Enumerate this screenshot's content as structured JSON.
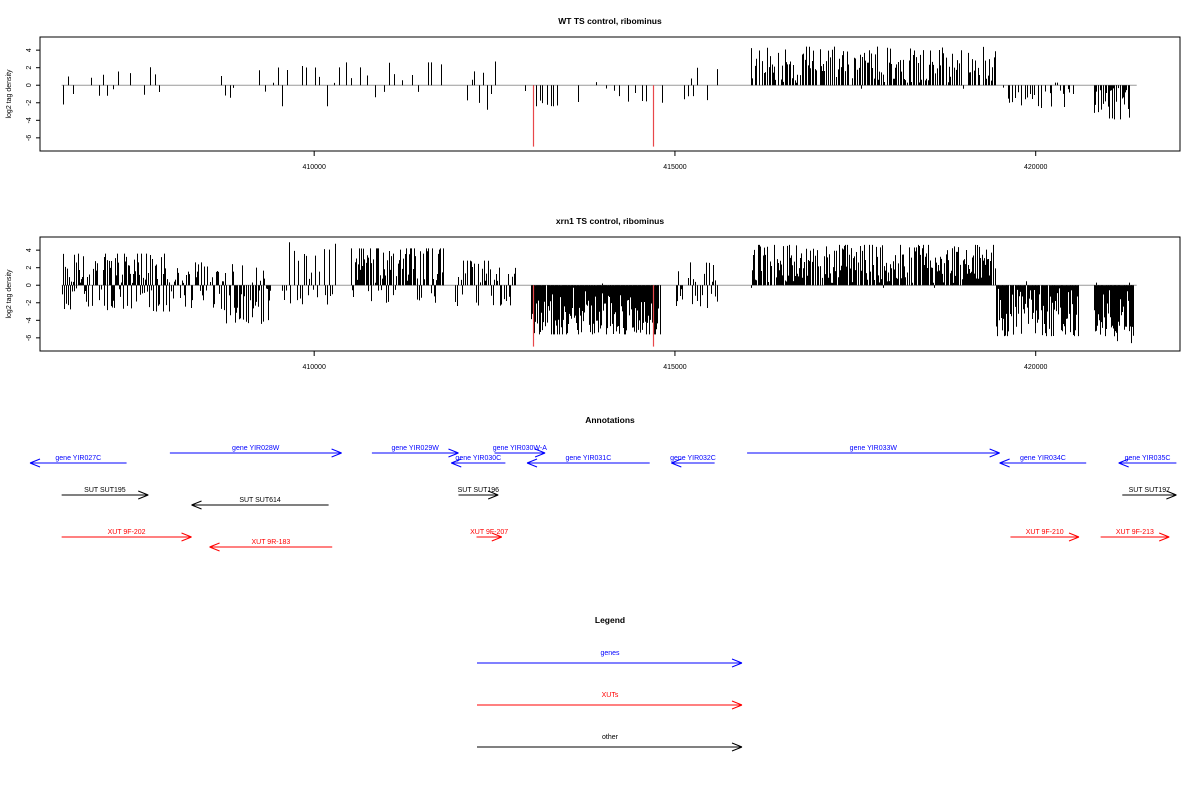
{
  "chart_data": [
    {
      "type": "bar",
      "title": "WT TS control, ribominus",
      "ylabel": "log2 tag density",
      "xlabel": "",
      "xlim": [
        406200,
        422000
      ],
      "ylim": [
        -7.5,
        5.5
      ],
      "yticks": [
        -6,
        -4,
        -2,
        0,
        2,
        4
      ],
      "xticks": [
        410000,
        415000,
        420000
      ],
      "xtick_labels": [
        "410000",
        "415000",
        "420000"
      ],
      "grid": false,
      "highlight_color": "#e8474a",
      "highlight_values": [
        {
          "x": 413030,
          "y": -7.0
        },
        {
          "x": 414700,
          "y": -7.0
        }
      ],
      "regions": [
        {
          "from": 406500,
          "to": 406680,
          "n": 3,
          "min": -2.2,
          "max": 1.0,
          "bias": 0.2,
          "p": 0.9
        },
        {
          "from": 406900,
          "to": 407900,
          "n": 14,
          "min": -1.2,
          "max": 2.6,
          "bias": 0.75,
          "p": 0.8
        },
        {
          "from": 408700,
          "to": 408900,
          "n": 4,
          "min": -2.2,
          "max": 1.2,
          "bias": 0.2,
          "p": 0.85
        },
        {
          "from": 409200,
          "to": 410200,
          "n": 12,
          "min": -2.4,
          "max": 2.2,
          "bias": 0.7,
          "p": 0.8
        },
        {
          "from": 410200,
          "to": 411800,
          "n": 16,
          "min": -1.6,
          "max": 2.6,
          "bias": 0.75,
          "p": 0.85
        },
        {
          "from": 412100,
          "to": 412600,
          "n": 9,
          "min": -2.8,
          "max": 2.7,
          "bias": 0.45,
          "p": 0.85
        },
        {
          "from": 412900,
          "to": 413400,
          "n": 10,
          "min": -2.4,
          "max": 0.5,
          "bias": 0.1,
          "p": 0.8
        },
        {
          "from": 413500,
          "to": 414900,
          "n": 14,
          "min": -2.0,
          "max": 0.4,
          "bias": 0.1,
          "p": 0.75
        },
        {
          "from": 415100,
          "to": 415600,
          "n": 10,
          "min": -2.0,
          "max": 2.0,
          "bias": 0.3,
          "p": 0.8
        },
        {
          "from": 416050,
          "to": 419450,
          "n": 170,
          "min": -0.4,
          "max": 4.4,
          "bias": 0.98,
          "p": 0.95
        },
        {
          "from": 419550,
          "to": 420600,
          "n": 30,
          "min": -2.6,
          "max": 0.3,
          "bias": 0.05,
          "p": 0.85
        },
        {
          "from": 420800,
          "to": 421300,
          "n": 30,
          "min": -3.9,
          "max": 0.2,
          "bias": 0.03,
          "p": 0.95
        }
      ]
    },
    {
      "type": "bar",
      "title": "xrn1 TS control, ribominus",
      "ylabel": "log2 tag density",
      "xlabel": "",
      "xlim": [
        406200,
        422000
      ],
      "ylim": [
        -7.5,
        5.5
      ],
      "yticks": [
        -6,
        -4,
        -2,
        0,
        2,
        4
      ],
      "xticks": [
        410000,
        415000,
        420000
      ],
      "xtick_labels": [
        "410000",
        "415000",
        "420000"
      ],
      "grid": false,
      "highlight_color": "#e8474a",
      "highlight_values": [
        {
          "x": 413030,
          "y": -7.0
        },
        {
          "x": 414700,
          "y": -7.0
        }
      ],
      "regions": [
        {
          "from": 406500,
          "to": 408000,
          "n": 110,
          "min": -3.0,
          "max": 3.6,
          "bias": 0.6,
          "p": 0.95
        },
        {
          "from": 408000,
          "to": 408700,
          "n": 40,
          "min": -2.6,
          "max": 2.6,
          "bias": 0.55,
          "p": 0.9
        },
        {
          "from": 408700,
          "to": 409400,
          "n": 45,
          "min": -4.4,
          "max": 2.4,
          "bias": 0.35,
          "p": 0.9
        },
        {
          "from": 409500,
          "to": 410300,
          "n": 30,
          "min": -2.2,
          "max": 5.2,
          "bias": 0.6,
          "p": 0.85
        },
        {
          "from": 410500,
          "to": 411800,
          "n": 90,
          "min": -2.0,
          "max": 4.2,
          "bias": 0.8,
          "p": 0.95
        },
        {
          "from": 411950,
          "to": 412800,
          "n": 40,
          "min": -2.4,
          "max": 2.8,
          "bias": 0.55,
          "p": 0.9
        },
        {
          "from": 413000,
          "to": 414800,
          "n": 230,
          "min": -5.6,
          "max": 0.2,
          "bias": 0.02,
          "p": 0.98
        },
        {
          "from": 415000,
          "to": 415600,
          "n": 30,
          "min": -2.6,
          "max": 2.6,
          "bias": 0.45,
          "p": 0.85
        },
        {
          "from": 416050,
          "to": 419450,
          "n": 240,
          "min": -0.3,
          "max": 4.6,
          "bias": 0.98,
          "p": 0.97
        },
        {
          "from": 419450,
          "to": 420600,
          "n": 110,
          "min": -5.8,
          "max": 0.5,
          "bias": 0.05,
          "p": 0.95
        },
        {
          "from": 420800,
          "to": 421350,
          "n": 60,
          "min": -6.6,
          "max": 0.3,
          "bias": 0.03,
          "p": 0.97
        }
      ]
    }
  ],
  "annotations": {
    "title": "Annotations",
    "items": [
      {
        "label": "gene YIR027C",
        "color": "#0000ff",
        "from": 407400,
        "to": 405200,
        "row": 1
      },
      {
        "label": "gene YIR028W",
        "color": "#0000ff",
        "from": 408000,
        "to": 410380,
        "row": 0
      },
      {
        "label": "gene YIR029W",
        "color": "#0000ff",
        "from": 410800,
        "to": 412000,
        "row": 0
      },
      {
        "label": "gene YIR030W-A",
        "color": "#0000ff",
        "from": 412500,
        "to": 413200,
        "row": 0
      },
      {
        "label": "gene YIR030C",
        "color": "#0000ff",
        "from": 412650,
        "to": 411900,
        "row": 1
      },
      {
        "label": "gene YIR031C",
        "color": "#0000ff",
        "from": 414650,
        "to": 412950,
        "row": 1
      },
      {
        "label": "gene YIR032C",
        "color": "#0000ff",
        "from": 415550,
        "to": 414950,
        "row": 1
      },
      {
        "label": "gene YIR033W",
        "color": "#0000ff",
        "from": 416000,
        "to": 419500,
        "row": 0
      },
      {
        "label": "gene YIR034C",
        "color": "#0000ff",
        "from": 420700,
        "to": 419500,
        "row": 1
      },
      {
        "label": "gene YIR035C",
        "color": "#0000ff",
        "from": 421950,
        "to": 421150,
        "row": 1
      },
      {
        "label": "SUT SUT195",
        "color": "#000000",
        "from": 406500,
        "to": 407700,
        "row": 2
      },
      {
        "label": "SUT SUT614",
        "color": "#000000",
        "from": 410200,
        "to": 408300,
        "row": 3
      },
      {
        "label": "SUT SUT196",
        "color": "#000000",
        "from": 412000,
        "to": 412550,
        "row": 2
      },
      {
        "label": "SUT SUT197",
        "color": "#000000",
        "from": 421200,
        "to": 421950,
        "row": 2
      },
      {
        "label": "XUT 9F-202",
        "color": "#ff0000",
        "from": 406500,
        "to": 408300,
        "row": 4
      },
      {
        "label": "XUT 9R-183",
        "color": "#ff0000",
        "from": 410250,
        "to": 408550,
        "row": 5
      },
      {
        "label": "XUT 9F-207",
        "color": "#ff0000",
        "from": 412250,
        "to": 412600,
        "row": 4
      },
      {
        "label": "XUT 9F-210",
        "color": "#ff0000",
        "from": 419650,
        "to": 420600,
        "row": 4
      },
      {
        "label": "XUT 9F-213",
        "color": "#ff0000",
        "from": 420900,
        "to": 421850,
        "row": 4
      }
    ]
  },
  "legend": {
    "title": "Legend",
    "items": [
      {
        "label": "genes",
        "color": "#0000ff"
      },
      {
        "label": "XUTs",
        "color": "#ff0000"
      },
      {
        "label": "other",
        "color": "#000000"
      }
    ]
  }
}
